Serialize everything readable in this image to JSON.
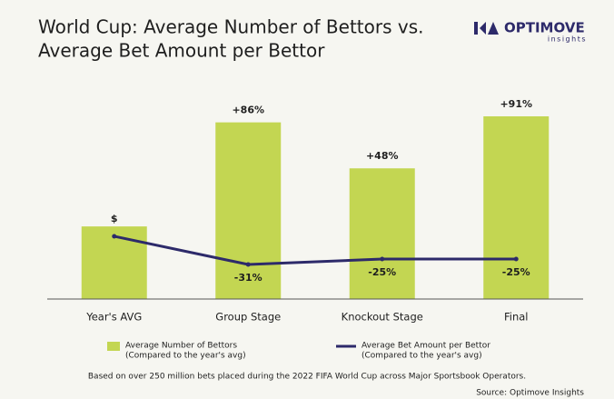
{
  "chart_data": {
    "type": "bar",
    "title": [
      "World Cup: Average Number of Bettors vs.",
      "Average Bet Amount per Bettor"
    ],
    "brand": "OPTIMOVE",
    "brand_sub": "insights",
    "categories": [
      "Year's AVG",
      "Group Stage",
      "Knockout Stage",
      "Final"
    ],
    "series": [
      {
        "name": "Average Number of Bettors",
        "subname": "(Compared to the year's avg)",
        "type": "bar",
        "color": "#c3d652",
        "values": [
          0,
          86,
          48,
          91
        ],
        "value_labels": [
          null,
          "+86%",
          "+48%",
          "+91%"
        ]
      },
      {
        "name": "Average Bet Amount per Bettor",
        "subname": "(Compared to the year's avg)",
        "type": "line",
        "axis": "y2",
        "color": "#2d2a6a",
        "values": [
          0,
          -31,
          -25,
          -25
        ],
        "value_labels": [
          null,
          "-31%",
          "-25%",
          "-25%"
        ]
      }
    ],
    "annotations": [
      "$"
    ],
    "ylim": [
      -60,
      100
    ],
    "y2lim": [
      -69,
      144
    ],
    "footnote": "Based on over 250 million bets placed during the 2022 FIFA World Cup across Major Sportsbook Operators.",
    "source": "Source: Optimove Insights"
  }
}
